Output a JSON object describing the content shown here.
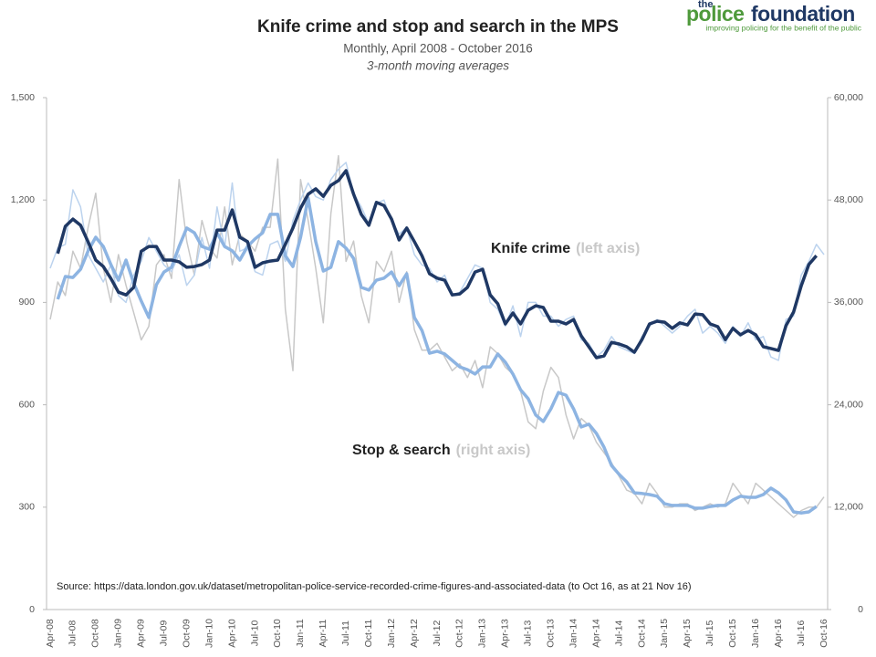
{
  "chart_data": {
    "type": "line",
    "title": "Knife crime and stop and search in the MPS",
    "subtitle": "Monthly,  April 2008 - October 2016",
    "note": "3-month moving averages",
    "source": "Source: https://data.london.gov.uk/dataset/metropolitan-police-service-recorded-crime-figures-and-associated-data (to Oct 16, as at 21 Nov 16)",
    "logo": {
      "small": "the",
      "first": "police",
      "second": "foundation",
      "tagline": "improving policing for the benefit of the public"
    },
    "categories": [
      "Apr-08",
      null,
      null,
      "Jul-08",
      null,
      null,
      "Oct-08",
      null,
      null,
      "Jan-09",
      null,
      null,
      "Apr-09",
      null,
      null,
      "Jul-09",
      null,
      null,
      "Oct-09",
      null,
      null,
      "Jan-10",
      null,
      null,
      "Apr-10",
      null,
      null,
      "Jul-10",
      null,
      null,
      "Oct-10",
      null,
      null,
      "Jan-11",
      null,
      null,
      "Apr-11",
      null,
      null,
      "Jul-11",
      null,
      null,
      "Oct-11",
      null,
      null,
      "Jan-12",
      null,
      null,
      "Apr-12",
      null,
      null,
      "Jul-12",
      null,
      null,
      "Oct-12",
      null,
      null,
      "Jan-13",
      null,
      null,
      "Apr-13",
      null,
      null,
      "Jul-13",
      null,
      null,
      "Oct-13",
      null,
      null,
      "Jan-14",
      null,
      null,
      "Apr-14",
      null,
      null,
      "Jul-14",
      null,
      null,
      "Oct-14",
      null,
      null,
      "Jan-15",
      null,
      null,
      "Apr-15",
      null,
      null,
      "Jul-15",
      null,
      null,
      "Oct-15",
      null,
      null,
      "Jan-16",
      null,
      null,
      "Apr-16",
      null,
      null,
      "Jul-16",
      null,
      null,
      "Oct-16"
    ],
    "ylim": [
      0,
      1500
    ],
    "yticks": [
      0,
      300,
      600,
      900,
      {
        "value": 1200,
        "label": "1,200"
      },
      {
        "value": 1500,
        "label": "1,500"
      }
    ],
    "y2lim": [
      0,
      60000
    ],
    "y2ticks": [
      0,
      {
        "value": 12000,
        "label": "12,000"
      },
      {
        "value": 24000,
        "label": "24,000"
      },
      {
        "value": 36000,
        "label": "36,000"
      },
      {
        "value": 48000,
        "label": "48,000"
      },
      {
        "value": 60000,
        "label": "60,000"
      }
    ],
    "series": [
      {
        "name": "Stop & search",
        "axis_label": "(right axis)",
        "axis": "y2",
        "color": "#8db4e2",
        "raw_color": "#c8c8c8",
        "values": [
          null,
          36360,
          39040,
          38920,
          39880,
          42040,
          43640,
          42560,
          40440,
          38600,
          40960,
          38280,
          36160,
          34240,
          38080,
          39560,
          40120,
          42560,
          44720,
          44160,
          42560,
          42240,
          44160,
          42560,
          42040,
          40960,
          42560,
          43440,
          44160,
          46320,
          46320,
          41480,
          40200,
          43640,
          48240,
          43120,
          39680,
          40120,
          43120,
          42360,
          41160,
          37760,
          37440,
          38600,
          38840,
          39560,
          37960,
          39360,
          34240,
          32720,
          30040,
          30280,
          29960,
          29200,
          28440,
          28120,
          27600,
          28440,
          28440,
          29960,
          29000,
          27600,
          25760,
          24720,
          22800,
          22040,
          23520,
          25440,
          25120,
          23520,
          21400,
          21720,
          20640,
          19040,
          16880,
          15840,
          14960,
          13680,
          13600,
          13480,
          13280,
          12400,
          12200,
          12200,
          12200,
          11880,
          11880,
          12080,
          12200,
          12200,
          12840,
          13280,
          13160,
          13160,
          13480,
          14240,
          13680,
          12840,
          11440,
          11320,
          11440,
          12080,
          null
        ],
        "raw_values": [
          34000,
          38400,
          36800,
          42000,
          40000,
          44800,
          48800,
          40000,
          36000,
          41600,
          38000,
          34800,
          31600,
          33200,
          40400,
          41600,
          38800,
          50400,
          43200,
          39200,
          45600,
          42400,
          41200,
          47200,
          40400,
          44000,
          43200,
          42000,
          44800,
          44800,
          52800,
          35200,
          28000,
          50400,
          45600,
          40000,
          33600,
          46400,
          53200,
          40800,
          43200,
          36800,
          33600,
          40800,
          39600,
          42000,
          36000,
          39600,
          32800,
          30400,
          30400,
          31200,
          29600,
          28000,
          28800,
          27200,
          29200,
          26000,
          30800,
          30000,
          28400,
          27600,
          25600,
          22000,
          21200,
          25600,
          28400,
          27200,
          22800,
          20000,
          22400,
          21600,
          19600,
          18400,
          17200,
          15600,
          14000,
          13600,
          12400,
          14800,
          13600,
          12000,
          12000,
          12400,
          12400,
          11600,
          12000,
          12400,
          12000,
          12400,
          14800,
          13600,
          12400,
          14800,
          14000,
          13200,
          12400,
          11600,
          10800,
          11600,
          12000,
          12000,
          13200
        ]
      },
      {
        "name": "Knife crime",
        "axis_label": "(left axis)",
        "axis": "y",
        "color": "#1f3864",
        "raw_color": "#bcd3ee",
        "values": [
          null,
          1043,
          1123,
          1144,
          1126,
          1077,
          1024,
          1005,
          970,
          930,
          922,
          944,
          1050,
          1064,
          1064,
          1024,
          1024,
          1019,
          1003,
          1005,
          1011,
          1024,
          1112,
          1112,
          1171,
          1091,
          1078,
          1003,
          1016,
          1021,
          1024,
          1070,
          1118,
          1176,
          1217,
          1233,
          1211,
          1243,
          1257,
          1286,
          1217,
          1158,
          1126,
          1193,
          1184,
          1144,
          1083,
          1118,
          1078,
          1037,
          984,
          971,
          965,
          922,
          925,
          944,
          989,
          997,
          922,
          896,
          837,
          869,
          837,
          877,
          890,
          885,
          845,
          845,
          837,
          850,
          802,
          770,
          738,
          743,
          783,
          778,
          770,
          754,
          791,
          837,
          845,
          842,
          824,
          840,
          834,
          866,
          864,
          837,
          829,
          791,
          824,
          805,
          818,
          805,
          770,
          765,
          759,
          832,
          872,
          949,
          1011,
          1037,
          null
        ],
        "raw_values": [
          1000,
          1060,
          1070,
          1230,
          1180,
          1040,
          1000,
          960,
          1010,
          920,
          900,
          980,
          1020,
          1090,
          1050,
          1010,
          990,
          1040,
          950,
          980,
          1090,
          1000,
          1180,
          1060,
          1250,
          1050,
          1060,
          990,
          980,
          1070,
          1080,
          1020,
          1140,
          1200,
          1250,
          1210,
          1200,
          1260,
          1290,
          1310,
          1220,
          1180,
          1130,
          1190,
          1200,
          1140,
          1100,
          1120,
          1040,
          1010,
          1000,
          960,
          980,
          920,
          930,
          970,
          1010,
          1000,
          900,
          880,
          830,
          890,
          800,
          900,
          900,
          860,
          860,
          830,
          850,
          860,
          790,
          780,
          740,
          760,
          800,
          770,
          760,
          750,
          800,
          830,
          850,
          830,
          810,
          830,
          860,
          880,
          810,
          830,
          810,
          780,
          830,
          800,
          840,
          790,
          800,
          740,
          730,
          850,
          860,
          980,
          1020,
          1070,
          1040
        ]
      }
    ],
    "annotation_positions": null
  }
}
